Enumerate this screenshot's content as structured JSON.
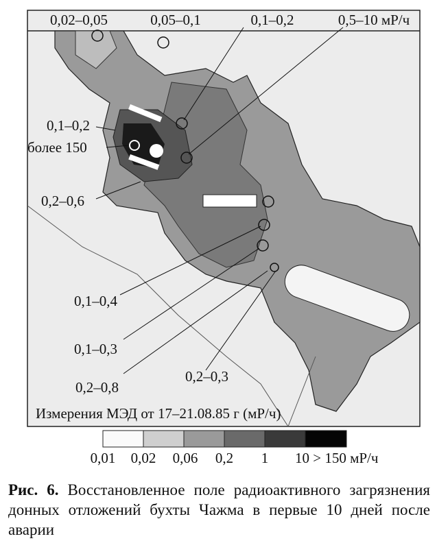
{
  "map": {
    "top_labels": [
      "0,02–0,05",
      "0,05–0,1",
      "0,1–0,2",
      "0,5–10 мР/ч"
    ],
    "left_labels": [
      "0,1–0,2",
      "более 150",
      "0,2–0,6"
    ],
    "bottom_labels": [
      "0,1–0,4",
      "0,1–0,3",
      "0,2–0,8",
      "0,2–0,3"
    ],
    "note": "Измерения МЭД от 17–21.08.85 г (мР/ч)"
  },
  "legend": {
    "labels": [
      "0,01",
      "0,02",
      "0,06",
      "0,2",
      "1",
      "10 > 150 мР/ч"
    ]
  },
  "caption": {
    "label": "Рис. 6.",
    "text": "Восстановленное поле радиоактивного загрязнения донных отложений бухты Чажма в первые 10 дней после аварии"
  }
}
